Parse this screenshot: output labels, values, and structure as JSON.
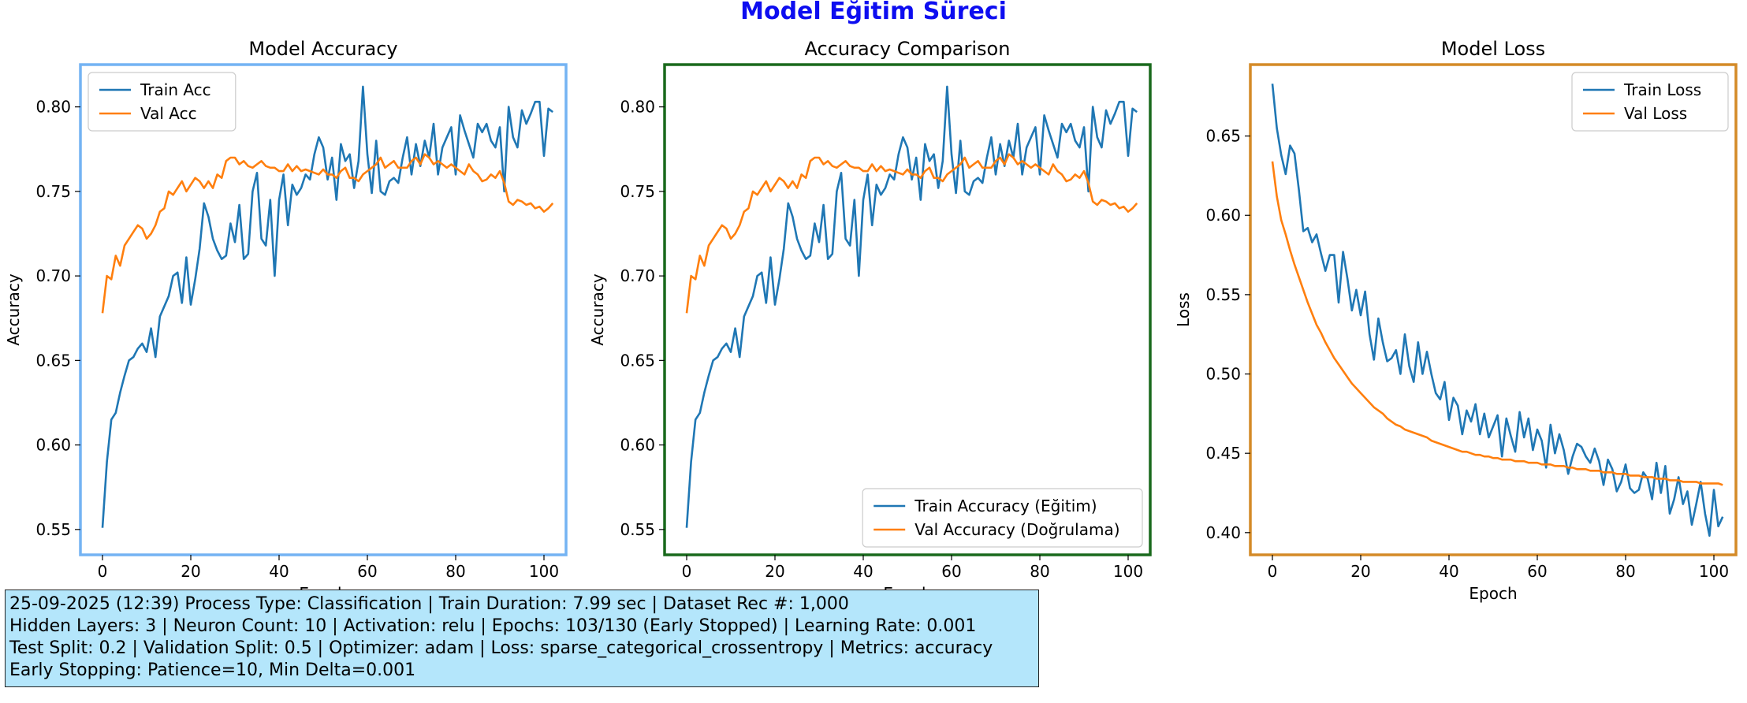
{
  "suptitle": "Model Eğitim Süreci",
  "colors": {
    "train": "#1f77b4",
    "val": "#ff7f0e",
    "suptitle": "#0d0df0",
    "border_accuracy": "#74b3f3",
    "border_comparison": "#19691c",
    "border_loss": "#d48a27",
    "info_bg": "#b4e6fb"
  },
  "info": {
    "line1": "25-09-2025  (12:39)  Process Type: Classification | Train Duration: 7.99 sec | Dataset Rec #: 1,000",
    "line2": "Hidden Layers: 3 | Neuron Count: 10 | Activation: relu | Epochs: 103/130 (Early Stopped) | Learning Rate: 0.001",
    "line3": "Test Split: 0.2 | Validation Split: 0.5 | Optimizer: adam | Loss: sparse_categorical_crossentropy | Metrics: accuracy",
    "line4": "Early Stopping: Patience=10, Min Delta=0.001"
  },
  "chart_data": [
    {
      "type": "line",
      "title": "Model Accuracy",
      "xlabel": "Epoch",
      "ylabel": "Accuracy",
      "xlim": [
        -5,
        105
      ],
      "ylim": [
        0.535,
        0.825
      ],
      "xticks": [
        0,
        20,
        40,
        60,
        80,
        100
      ],
      "yticks": [
        0.55,
        0.6,
        0.65,
        0.7,
        0.75,
        0.8
      ],
      "ytick_labels": [
        "0.55",
        "0.60",
        "0.65",
        "0.70",
        "0.75",
        "0.80"
      ],
      "legend_loc": "upper-left",
      "border": "border_accuracy",
      "series": [
        {
          "name": "Train Acc",
          "color": "train",
          "values": "train_acc"
        },
        {
          "name": "Val Acc",
          "color": "val",
          "values": "val_acc"
        }
      ]
    },
    {
      "type": "line",
      "title": "Accuracy Comparison",
      "xlabel": "Epoch",
      "ylabel": "Accuracy",
      "xlim": [
        -5,
        105
      ],
      "ylim": [
        0.535,
        0.825
      ],
      "xticks": [
        0,
        20,
        40,
        60,
        80,
        100
      ],
      "yticks": [
        0.55,
        0.6,
        0.65,
        0.7,
        0.75,
        0.8
      ],
      "ytick_labels": [
        "0.55",
        "0.60",
        "0.65",
        "0.70",
        "0.75",
        "0.80"
      ],
      "legend_loc": "lower-right",
      "border": "border_comparison",
      "series": [
        {
          "name": "Train Accuracy (Eğitim)",
          "color": "train",
          "values": "train_acc"
        },
        {
          "name": "Val Accuracy (Doğrulama)",
          "color": "val",
          "values": "val_acc"
        }
      ]
    },
    {
      "type": "line",
      "title": "Model Loss",
      "xlabel": "Epoch",
      "ylabel": "Loss",
      "xlim": [
        -5,
        105
      ],
      "ylim": [
        0.386,
        0.695
      ],
      "xticks": [
        0,
        20,
        40,
        60,
        80,
        100
      ],
      "yticks": [
        0.4,
        0.45,
        0.5,
        0.55,
        0.6,
        0.65
      ],
      "ytick_labels": [
        "0.40",
        "0.45",
        "0.50",
        "0.55",
        "0.60",
        "0.65"
      ],
      "legend_loc": "upper-right",
      "border": "border_loss",
      "series": [
        {
          "name": "Train Loss",
          "color": "train",
          "values": "train_loss"
        },
        {
          "name": "Val Loss",
          "color": "val",
          "values": "val_loss"
        }
      ]
    }
  ],
  "series_values": {
    "train_acc": [
      0.551,
      0.59,
      0.615,
      0.619,
      0.631,
      0.641,
      0.65,
      0.652,
      0.657,
      0.66,
      0.655,
      0.669,
      0.652,
      0.676,
      0.682,
      0.688,
      0.7,
      0.702,
      0.684,
      0.711,
      0.683,
      0.698,
      0.716,
      0.743,
      0.735,
      0.722,
      0.715,
      0.71,
      0.712,
      0.731,
      0.72,
      0.742,
      0.71,
      0.713,
      0.75,
      0.761,
      0.722,
      0.718,
      0.745,
      0.7,
      0.745,
      0.76,
      0.73,
      0.754,
      0.748,
      0.752,
      0.76,
      0.757,
      0.772,
      0.782,
      0.776,
      0.757,
      0.77,
      0.745,
      0.778,
      0.768,
      0.772,
      0.752,
      0.768,
      0.812,
      0.772,
      0.749,
      0.78,
      0.75,
      0.748,
      0.756,
      0.758,
      0.755,
      0.77,
      0.782,
      0.76,
      0.778,
      0.765,
      0.78,
      0.77,
      0.79,
      0.76,
      0.776,
      0.782,
      0.788,
      0.76,
      0.795,
      0.786,
      0.778,
      0.77,
      0.79,
      0.785,
      0.79,
      0.78,
      0.776,
      0.788,
      0.75,
      0.8,
      0.782,
      0.776,
      0.798,
      0.79,
      0.796,
      0.803,
      0.803,
      0.771,
      0.799,
      0.797
    ],
    "val_acc": [
      0.678,
      0.7,
      0.698,
      0.712,
      0.706,
      0.718,
      0.722,
      0.726,
      0.73,
      0.728,
      0.722,
      0.725,
      0.73,
      0.738,
      0.74,
      0.75,
      0.748,
      0.752,
      0.756,
      0.75,
      0.754,
      0.758,
      0.756,
      0.752,
      0.756,
      0.752,
      0.76,
      0.758,
      0.768,
      0.77,
      0.77,
      0.766,
      0.768,
      0.765,
      0.764,
      0.766,
      0.768,
      0.765,
      0.764,
      0.764,
      0.762,
      0.762,
      0.766,
      0.762,
      0.765,
      0.762,
      0.763,
      0.762,
      0.761,
      0.76,
      0.763,
      0.76,
      0.76,
      0.758,
      0.762,
      0.764,
      0.758,
      0.758,
      0.756,
      0.76,
      0.762,
      0.764,
      0.766,
      0.77,
      0.764,
      0.766,
      0.768,
      0.764,
      0.764,
      0.764,
      0.768,
      0.77,
      0.766,
      0.772,
      0.77,
      0.766,
      0.768,
      0.766,
      0.764,
      0.766,
      0.764,
      0.762,
      0.76,
      0.766,
      0.762,
      0.76,
      0.756,
      0.757,
      0.76,
      0.758,
      0.762,
      0.755,
      0.744,
      0.742,
      0.745,
      0.744,
      0.742,
      0.743,
      0.74,
      0.741,
      0.738,
      0.74,
      0.743
    ],
    "train_loss": [
      0.683,
      0.655,
      0.638,
      0.626,
      0.644,
      0.639,
      0.616,
      0.59,
      0.592,
      0.583,
      0.588,
      0.576,
      0.565,
      0.575,
      0.575,
      0.545,
      0.577,
      0.56,
      0.54,
      0.553,
      0.537,
      0.552,
      0.525,
      0.509,
      0.535,
      0.52,
      0.508,
      0.51,
      0.515,
      0.5,
      0.525,
      0.505,
      0.495,
      0.52,
      0.5,
      0.514,
      0.5,
      0.488,
      0.484,
      0.495,
      0.471,
      0.485,
      0.48,
      0.462,
      0.477,
      0.47,
      0.481,
      0.462,
      0.475,
      0.46,
      0.467,
      0.474,
      0.448,
      0.472,
      0.461,
      0.451,
      0.476,
      0.46,
      0.472,
      0.452,
      0.465,
      0.458,
      0.441,
      0.468,
      0.45,
      0.462,
      0.452,
      0.437,
      0.448,
      0.456,
      0.454,
      0.448,
      0.444,
      0.453,
      0.445,
      0.43,
      0.446,
      0.44,
      0.426,
      0.432,
      0.443,
      0.428,
      0.425,
      0.427,
      0.438,
      0.434,
      0.421,
      0.444,
      0.425,
      0.442,
      0.412,
      0.421,
      0.435,
      0.418,
      0.426,
      0.405,
      0.418,
      0.432,
      0.412,
      0.398,
      0.427,
      0.404,
      0.41
    ],
    "val_loss": [
      0.634,
      0.612,
      0.597,
      0.588,
      0.578,
      0.569,
      0.561,
      0.553,
      0.545,
      0.538,
      0.531,
      0.526,
      0.52,
      0.515,
      0.51,
      0.506,
      0.502,
      0.498,
      0.494,
      0.491,
      0.488,
      0.485,
      0.482,
      0.479,
      0.477,
      0.475,
      0.472,
      0.47,
      0.468,
      0.467,
      0.465,
      0.464,
      0.463,
      0.462,
      0.461,
      0.46,
      0.458,
      0.457,
      0.456,
      0.455,
      0.454,
      0.453,
      0.452,
      0.451,
      0.451,
      0.45,
      0.449,
      0.449,
      0.448,
      0.448,
      0.447,
      0.447,
      0.446,
      0.446,
      0.446,
      0.445,
      0.445,
      0.445,
      0.444,
      0.444,
      0.444,
      0.443,
      0.443,
      0.443,
      0.442,
      0.442,
      0.442,
      0.441,
      0.441,
      0.44,
      0.44,
      0.44,
      0.439,
      0.439,
      0.439,
      0.438,
      0.438,
      0.438,
      0.437,
      0.437,
      0.437,
      0.436,
      0.436,
      0.436,
      0.435,
      0.435,
      0.435,
      0.434,
      0.434,
      0.434,
      0.433,
      0.433,
      0.433,
      0.432,
      0.432,
      0.432,
      0.432,
      0.431,
      0.431,
      0.431,
      0.431,
      0.431,
      0.43
    ]
  }
}
